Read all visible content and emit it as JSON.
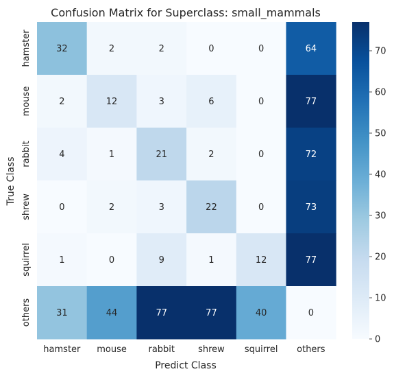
{
  "chart_data": {
    "type": "heatmap",
    "title": "Confusion Matrix for Superclass: small_mammals",
    "xlabel": "Predict Class",
    "ylabel": "True Class",
    "x_categories": [
      "hamster",
      "mouse",
      "rabbit",
      "shrew",
      "squirrel",
      "others"
    ],
    "y_categories": [
      "hamster",
      "mouse",
      "rabbit",
      "shrew",
      "squirrel",
      "others"
    ],
    "values": [
      [
        32,
        2,
        2,
        0,
        0,
        64
      ],
      [
        2,
        12,
        3,
        6,
        0,
        77
      ],
      [
        4,
        1,
        21,
        2,
        0,
        72
      ],
      [
        0,
        2,
        3,
        22,
        0,
        73
      ],
      [
        1,
        0,
        9,
        1,
        12,
        77
      ],
      [
        31,
        44,
        77,
        77,
        40,
        0
      ]
    ],
    "colorbar": {
      "min": 0,
      "max": 77,
      "ticks": [
        0,
        10,
        20,
        30,
        40,
        50,
        60,
        70
      ],
      "colormap": "Blues",
      "low_color": "#f7fbff",
      "high_color": "#08306b"
    },
    "grid": false
  }
}
